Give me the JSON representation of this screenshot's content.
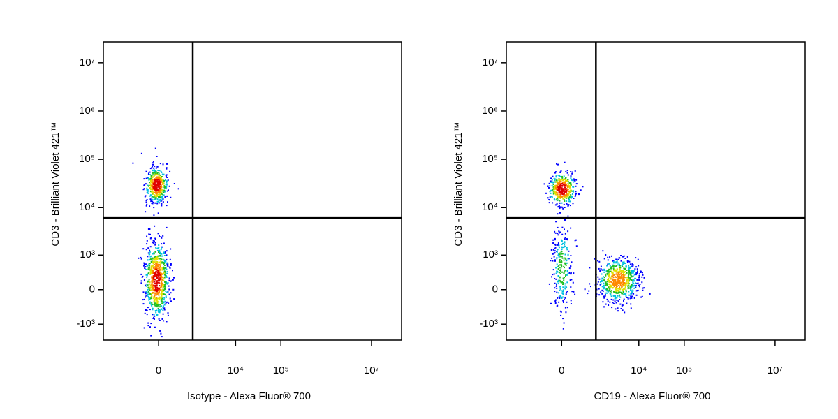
{
  "chart_data": [
    {
      "type": "density",
      "x_label": "Isotype - Alexa Fluor® 700",
      "y_label": "CD3 - Brilliant Violet 421™",
      "xscale": "asinh",
      "yscale": "asinh",
      "xlim": [
        -3300,
        46000000
      ],
      "ylim": [
        -2200,
        27000000
      ],
      "xticks": [
        0,
        {
          "value": 10000,
          "label": "10⁴"
        },
        {
          "value": 100000,
          "label": "10⁵"
        },
        {
          "value": 10000000,
          "label": "10⁷"
        }
      ],
      "yticks": [
        {
          "value": 10000000,
          "label": "10⁷"
        },
        {
          "value": 1000000,
          "label": "10⁶"
        },
        {
          "value": 100000,
          "label": "10⁵"
        },
        {
          "value": 10000,
          "label": "10⁴"
        },
        {
          "value": 1000,
          "label": "10³"
        },
        0,
        {
          "value": -1000,
          "label": "-10³"
        }
      ],
      "quadrant": {
        "x": 1100,
        "y": 6100
      },
      "populations": [
        {
          "x": -50,
          "y": 30000
        },
        {
          "x": -50,
          "y": 200
        }
      ]
    },
    {
      "type": "density",
      "x_label": "CD19 - Alexa Fluor® 700",
      "y_label": "CD3 - Brilliant Violet 421™",
      "xscale": "asinh",
      "yscale": "asinh",
      "xlim": [
        -3300,
        46000000
      ],
      "ylim": [
        -2200,
        27000000
      ],
      "xticks": [
        0,
        {
          "value": 10000,
          "label": "10⁴"
        },
        {
          "value": 100000,
          "label": "10⁵"
        },
        {
          "value": 10000000,
          "label": "10⁷"
        }
      ],
      "yticks": [
        {
          "value": 10000000,
          "label": "10⁷"
        },
        {
          "value": 1000000,
          "label": "10⁶"
        },
        {
          "value": 100000,
          "label": "10⁵"
        },
        {
          "value": 10000,
          "label": "10⁴"
        },
        {
          "value": 1000,
          "label": "10³"
        },
        0,
        {
          "value": -1000,
          "label": "-10³"
        }
      ],
      "quadrant": {
        "x": 1100,
        "y": 6100
      },
      "populations": [
        {
          "x": 0,
          "y": 25000
        },
        {
          "x": 0,
          "y": 500
        },
        {
          "x": 3400,
          "y": 200
        }
      ]
    }
  ]
}
